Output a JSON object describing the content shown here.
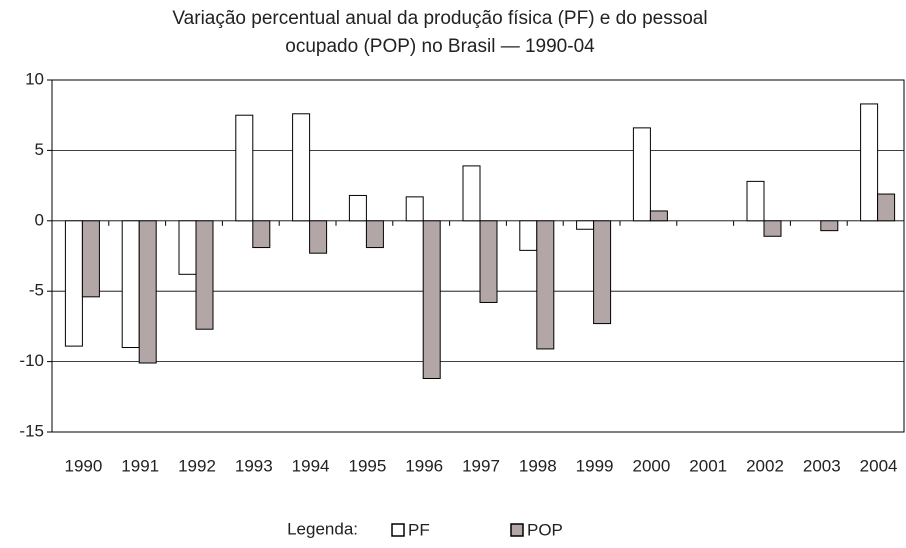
{
  "chart_data": {
    "type": "bar",
    "title": [
      "Variação percentual anual da produção física (PF) e do pessoal",
      "ocupado (POP) no Brasil — 1990-04"
    ],
    "categories": [
      "1990",
      "1991",
      "1992",
      "1993",
      "1994",
      "1995",
      "1996",
      "1997",
      "1998",
      "1999",
      "2000",
      "2001",
      "2002",
      "2003",
      "2004"
    ],
    "series": [
      {
        "name": "PF",
        "color": "#ffffff",
        "values": [
          -8.9,
          -9.0,
          -3.8,
          7.5,
          7.6,
          1.8,
          1.7,
          3.9,
          -2.1,
          -0.6,
          6.6,
          0,
          2.8,
          0,
          8.3
        ]
      },
      {
        "name": "POP",
        "color": "#b3a6a6",
        "values": [
          -5.4,
          -10.1,
          -7.7,
          -1.9,
          -2.3,
          -1.9,
          -11.2,
          -5.8,
          -9.1,
          -7.3,
          0.7,
          0,
          -1.1,
          -0.7,
          1.9
        ]
      }
    ],
    "legend_title": "Legenda:",
    "ylim": [
      -15,
      10
    ],
    "yticks": [
      -15,
      -10,
      -5,
      0,
      5,
      10
    ],
    "grid": true
  }
}
